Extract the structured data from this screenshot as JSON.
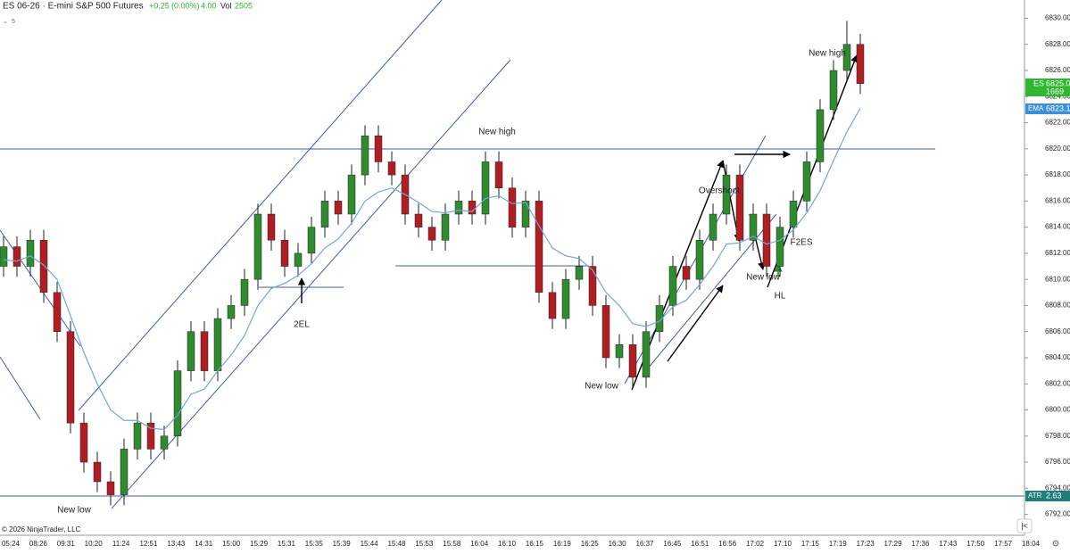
{
  "chart_data": {
    "type": "candlestick",
    "title": "ES 06-26 · E-mini S&P 500 Futures",
    "change": "+0.25",
    "change_pct": "(0.00%)",
    "tick": "4.00",
    "vol_label": "Vol",
    "volume": "2505",
    "interval": "5",
    "price_tag": {
      "name": "ES",
      "value": "6825.00"
    },
    "volume_tag": "1669",
    "ema_tag": {
      "name": "EMA",
      "value": "6823.10"
    },
    "atr_tag": {
      "name": "ATR",
      "value": "2.63"
    },
    "up_color": "#2e8b2e",
    "down_color": "#b01e23",
    "ema_color": "#6fa8dc",
    "ylim": [
      6790.4,
      6831.4
    ],
    "yticks": [
      {
        "value": 6792,
        "label": "6792.00"
      },
      {
        "value": 6794,
        "label": "6794.00"
      },
      {
        "value": 6796,
        "label": "6796.00"
      },
      {
        "value": 6798,
        "label": "6798.00"
      },
      {
        "value": 6800,
        "label": "6800.00"
      },
      {
        "value": 6802,
        "label": "6802.00"
      },
      {
        "value": 6804,
        "label": "6804.00"
      },
      {
        "value": 6806,
        "label": "6806.00"
      },
      {
        "value": 6808,
        "label": "6808.00"
      },
      {
        "value": 6810,
        "label": "6810.00"
      },
      {
        "value": 6812,
        "label": "6812.00"
      },
      {
        "value": 6814,
        "label": "6814.00"
      },
      {
        "value": 6816,
        "label": "6816.00"
      },
      {
        "value": 6818,
        "label": "6818.00"
      },
      {
        "value": 6820,
        "label": "6820.00"
      },
      {
        "value": 6822,
        "label": "6822.00"
      },
      {
        "value": 6824,
        "label": "6824.00"
      },
      {
        "value": 6826,
        "label": "6826.00"
      },
      {
        "value": 6828,
        "label": "6828.00"
      },
      {
        "value": 6830,
        "label": "6830.00"
      }
    ],
    "xlabels": [
      "05:24",
      "08:26",
      "09:31",
      "10:20",
      "11:24",
      "12:51",
      "13:43",
      "14:31",
      "15:00",
      "15:29",
      "15:31",
      "15:35",
      "15:39",
      "15:44",
      "15:48",
      "15:53",
      "15:58",
      "16:04",
      "16:10",
      "16:15",
      "16:19",
      "16:25",
      "16:30",
      "16:37",
      "16:45",
      "16:51",
      "16:56",
      "17:02",
      "17:10",
      "17:15",
      "17:19",
      "17:23",
      "17:29",
      "17:36",
      "17:43",
      "17:50",
      "17:57",
      "18:04"
    ],
    "candles": [
      [
        6811,
        6813.3,
        6810.2,
        6812.5
      ],
      [
        6812.5,
        6813.3,
        6810.2,
        6811
      ],
      [
        6811,
        6813.8,
        6810.2,
        6813
      ],
      [
        6813,
        6813.8,
        6808.2,
        6809
      ],
      [
        6809,
        6809.8,
        6805.2,
        6806
      ],
      [
        6806,
        6806.8,
        6798.2,
        6799
      ],
      [
        6799,
        6799.8,
        6795.2,
        6796
      ],
      [
        6796,
        6796.8,
        6793.7,
        6794.5
      ],
      [
        6794.5,
        6795.3,
        6792.7,
        6793.5
      ],
      [
        6793.5,
        6797.8,
        6792.7,
        6797
      ],
      [
        6797,
        6799.8,
        6796.2,
        6799
      ],
      [
        6799,
        6799.8,
        6796.2,
        6797
      ],
      [
        6797,
        6798.8,
        6796.2,
        6798
      ],
      [
        6798,
        6803.8,
        6797.2,
        6803
      ],
      [
        6803,
        6806.8,
        6802.2,
        6806
      ],
      [
        6806,
        6806.8,
        6802.2,
        6803
      ],
      [
        6803,
        6807.8,
        6802.2,
        6807
      ],
      [
        6807,
        6808.8,
        6806.2,
        6808
      ],
      [
        6808,
        6810.8,
        6807.2,
        6810
      ],
      [
        6810,
        6815.8,
        6809.2,
        6815
      ],
      [
        6815,
        6815.8,
        6812.2,
        6813
      ],
      [
        6813,
        6813.8,
        6810.2,
        6811
      ],
      [
        6811,
        6812.8,
        6810.2,
        6812
      ],
      [
        6812,
        6814.8,
        6811.2,
        6814
      ],
      [
        6814,
        6816.8,
        6813.2,
        6816
      ],
      [
        6816,
        6816.8,
        6814.2,
        6815
      ],
      [
        6815,
        6818.8,
        6814.2,
        6818
      ],
      [
        6818,
        6821.8,
        6817.2,
        6821
      ],
      [
        6821,
        6821.8,
        6818.2,
        6819
      ],
      [
        6819,
        6819.8,
        6817.2,
        6818
      ],
      [
        6818,
        6818.8,
        6814.2,
        6815
      ],
      [
        6815,
        6815.8,
        6813.2,
        6814
      ],
      [
        6814,
        6814.8,
        6812.2,
        6813
      ],
      [
        6813,
        6815.8,
        6812.2,
        6815
      ],
      [
        6815,
        6816.8,
        6814.2,
        6816
      ],
      [
        6816,
        6816.8,
        6814.2,
        6815
      ],
      [
        6815,
        6819.8,
        6814.2,
        6819
      ],
      [
        6819,
        6819.8,
        6816.2,
        6817
      ],
      [
        6817,
        6817.8,
        6813.2,
        6814
      ],
      [
        6814,
        6816.8,
        6813.2,
        6816
      ],
      [
        6816,
        6816.8,
        6808.2,
        6809
      ],
      [
        6809,
        6809.8,
        6806.2,
        6807
      ],
      [
        6807,
        6810.8,
        6806.2,
        6810
      ],
      [
        6810,
        6811.8,
        6809.2,
        6811
      ],
      [
        6811,
        6811.8,
        6807.2,
        6808
      ],
      [
        6808,
        6808.8,
        6803.2,
        6804
      ],
      [
        6804,
        6805.8,
        6803.2,
        6805
      ],
      [
        6805,
        6805.8,
        6801.7,
        6802.5
      ],
      [
        6802.5,
        6806.8,
        6801.7,
        6806
      ],
      [
        6806,
        6808.8,
        6805.2,
        6808
      ],
      [
        6808,
        6811.8,
        6807.2,
        6811
      ],
      [
        6811,
        6811.8,
        6809.2,
        6810
      ],
      [
        6810,
        6813.8,
        6809.2,
        6813
      ],
      [
        6813,
        6815.8,
        6812.2,
        6815
      ],
      [
        6815,
        6818.8,
        6814.2,
        6818
      ],
      [
        6818,
        6818.8,
        6812.2,
        6813
      ],
      [
        6813,
        6815.8,
        6812.2,
        6815
      ],
      [
        6815,
        6815.8,
        6810.2,
        6811
      ],
      [
        6811,
        6814.8,
        6810.2,
        6814
      ],
      [
        6814,
        6816.8,
        6813.2,
        6816
      ],
      [
        6816,
        6819.8,
        6815.2,
        6819
      ],
      [
        6819,
        6823.8,
        6818.2,
        6823
      ],
      [
        6823,
        6826.8,
        6822.2,
        6826
      ],
      [
        6826,
        6829.8,
        6825.2,
        6828
      ],
      [
        6828,
        6828.8,
        6824.2,
        6825
      ]
    ],
    "ema": [
      6811.5,
      6811.4,
      6811.8,
      6811.1,
      6810,
      6807.2,
      6804.4,
      6802,
      6800,
      6799.2,
      6799.2,
      6798.6,
      6798.5,
      6799.6,
      6801.2,
      6801.6,
      6803,
      6804.2,
      6805.7,
      6808,
      6809.3,
      6809.7,
      6810.3,
      6811.2,
      6812.4,
      6813.1,
      6814.3,
      6816,
      6816.7,
      6817,
      6816.5,
      6815.9,
      6815.2,
      6815.1,
      6815.3,
      6815.2,
      6816.2,
      6816.4,
      6815.8,
      6815.9,
      6814.1,
      6812.4,
      6811.8,
      6811.6,
      6810.7,
      6809,
      6808,
      6806.6,
      6806.4,
      6806.8,
      6807.9,
      6808.4,
      6809.6,
      6811,
      6812.7,
      6812.8,
      6813.3,
      6812.7,
      6813,
      6813.8,
      6815.1,
      6816.8,
      6819.1,
      6821.3,
      6823.1
    ],
    "annotations": [
      "New low",
      "New high",
      "2EL",
      "New low",
      "Overshoot",
      "New low",
      "F2ES",
      "HL",
      "New high"
    ]
  },
  "footer": "© 2026 NinjaTrader, LLC"
}
